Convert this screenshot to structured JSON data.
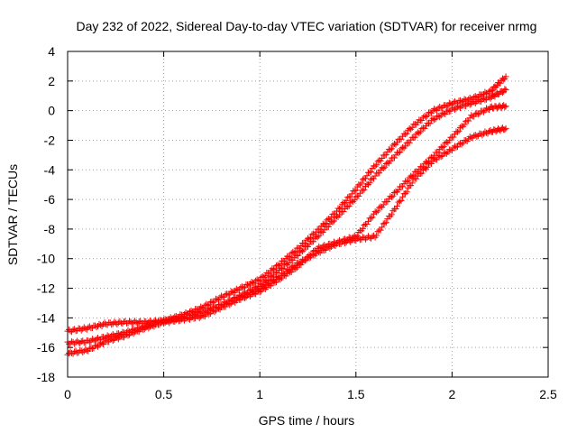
{
  "chart_data": {
    "type": "scatter",
    "title": "Day 232 of 2022, Sidereal Day-to-day VTEC variation (SDTVAR) for receiver nrmg",
    "xlabel": "GPS time / hours",
    "ylabel": "SDTVAR / TECUs",
    "xlim": [
      0,
      2.5
    ],
    "ylim": [
      -18,
      4
    ],
    "xticks": [
      "0",
      "0.5",
      "1",
      "1.5",
      "2",
      "2.5"
    ],
    "yticks": [
      "4",
      "2",
      "0",
      "-2",
      "-4",
      "-6",
      "-8",
      "-10",
      "-12",
      "-14",
      "-16",
      "-18"
    ],
    "grid": true,
    "marker": "+",
    "series_color": "#ff0000",
    "series": [
      {
        "x": [
          0,
          0.1,
          0.2,
          0.3,
          0.4,
          0.5,
          0.6,
          0.7,
          0.8,
          0.9,
          1.0,
          1.1,
          1.2,
          1.3,
          1.4,
          1.5,
          1.6,
          1.7,
          1.8,
          1.9,
          2.0,
          2.1,
          2.2,
          2.28
        ],
        "y": [
          -14.9,
          -14.7,
          -14.4,
          -14.3,
          -14.3,
          -14.2,
          -13.8,
          -13.3,
          -12.6,
          -12.0,
          -11.4,
          -10.4,
          -9.3,
          -8.1,
          -6.8,
          -5.3,
          -3.7,
          -2.3,
          -1.0,
          0.0,
          0.5,
          0.8,
          1.3,
          2.3
        ]
      },
      {
        "x": [
          0,
          0.1,
          0.2,
          0.3,
          0.4,
          0.5,
          0.6,
          0.7,
          0.8,
          0.9,
          1.0,
          1.1,
          1.2,
          1.3,
          1.4,
          1.5,
          1.6,
          1.7,
          1.8,
          1.9,
          2.0,
          2.1,
          2.2,
          2.28
        ],
        "y": [
          -15.7,
          -15.6,
          -15.3,
          -15.0,
          -14.6,
          -14.2,
          -14.0,
          -13.6,
          -13.1,
          -12.5,
          -11.8,
          -10.8,
          -9.7,
          -8.5,
          -7.2,
          -5.9,
          -4.4,
          -3.1,
          -1.8,
          -0.6,
          0.1,
          0.5,
          0.9,
          1.4
        ]
      },
      {
        "x": [
          0,
          0.1,
          0.2,
          0.3,
          0.4,
          0.5,
          0.6,
          0.7,
          0.8,
          0.9,
          1.0,
          1.1,
          1.2,
          1.3,
          1.4,
          1.5,
          1.6,
          1.7,
          1.8,
          1.9,
          2.0,
          2.1,
          2.2,
          2.28
        ],
        "y": [
          -16.4,
          -16.2,
          -15.6,
          -15.2,
          -14.7,
          -14.3,
          -14.1,
          -13.9,
          -13.3,
          -12.7,
          -12.2,
          -11.4,
          -10.5,
          -9.3,
          -8.9,
          -8.5,
          -6.9,
          -5.6,
          -4.3,
          -3.1,
          -1.8,
          -0.4,
          0.2,
          0.3
        ]
      },
      {
        "x": [
          0.9,
          1.0,
          1.1,
          1.2,
          1.3,
          1.4,
          1.5,
          1.6,
          1.7,
          1.8,
          1.9,
          2.0,
          2.1,
          2.2,
          2.28
        ],
        "y": [
          -12.6,
          -12.0,
          -11.2,
          -10.3,
          -9.6,
          -9.0,
          -8.7,
          -8.5,
          -6.7,
          -4.7,
          -3.4,
          -2.6,
          -1.8,
          -1.4,
          -1.2
        ]
      }
    ]
  }
}
